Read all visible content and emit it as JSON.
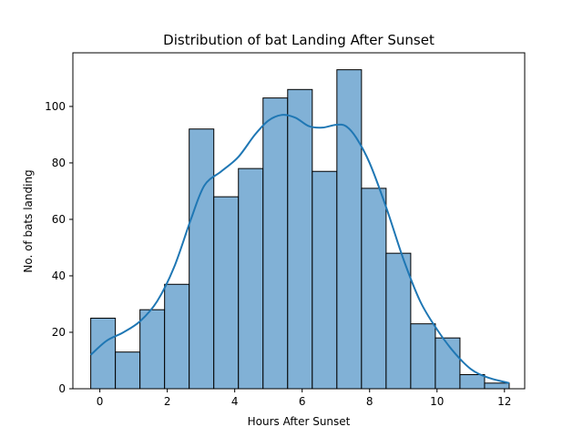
{
  "chart_data": {
    "type": "bar",
    "subtype": "histogram with kde line",
    "title": "Distribution of bat Landing After Sunset",
    "xlabel": "Hours After Sunset",
    "ylabel": "No. of bats landing",
    "xlim": [
      -0.8,
      12.6
    ],
    "ylim": [
      0,
      119
    ],
    "xticks": [
      0,
      2,
      4,
      6,
      8,
      10,
      12
    ],
    "yticks": [
      0,
      20,
      40,
      60,
      80,
      100
    ],
    "grid": false,
    "bins": [
      {
        "start": -0.27,
        "end": 0.46,
        "count": 25
      },
      {
        "start": 0.46,
        "end": 1.19,
        "count": 13
      },
      {
        "start": 1.19,
        "end": 1.92,
        "count": 28
      },
      {
        "start": 1.92,
        "end": 2.65,
        "count": 37
      },
      {
        "start": 2.65,
        "end": 3.38,
        "count": 92
      },
      {
        "start": 3.38,
        "end": 4.11,
        "count": 68
      },
      {
        "start": 4.11,
        "end": 4.84,
        "count": 78
      },
      {
        "start": 4.84,
        "end": 5.57,
        "count": 103
      },
      {
        "start": 5.57,
        "end": 6.3,
        "count": 106
      },
      {
        "start": 6.3,
        "end": 7.03,
        "count": 77
      },
      {
        "start": 7.03,
        "end": 7.76,
        "count": 113
      },
      {
        "start": 7.76,
        "end": 8.49,
        "count": 71
      },
      {
        "start": 8.49,
        "end": 9.22,
        "count": 48
      },
      {
        "start": 9.22,
        "end": 9.95,
        "count": 23
      },
      {
        "start": 9.95,
        "end": 10.68,
        "count": 18
      },
      {
        "start": 10.68,
        "end": 11.41,
        "count": 5
      },
      {
        "start": 11.41,
        "end": 12.14,
        "count": 2
      }
    ],
    "kde": {
      "x": [
        -0.27,
        0.2,
        0.7,
        1.2,
        1.7,
        2.2,
        2.7,
        3.1,
        3.6,
        4.1,
        4.6,
        5.0,
        5.4,
        5.8,
        6.2,
        6.6,
        7.0,
        7.3,
        7.6,
        8.0,
        8.5,
        9.0,
        9.5,
        10.0,
        10.5,
        11.0,
        11.5,
        12.14
      ],
      "y": [
        12,
        17,
        20,
        24,
        31,
        43,
        60,
        72,
        77,
        82,
        90,
        95,
        97,
        96,
        93,
        92.5,
        93.5,
        93,
        89,
        80,
        64,
        46,
        31,
        21,
        13,
        7,
        4,
        2
      ]
    },
    "colors": {
      "bar_fill": "#81b1d6",
      "bar_edge": "#000000",
      "kde_line": "#1f77b4"
    }
  }
}
